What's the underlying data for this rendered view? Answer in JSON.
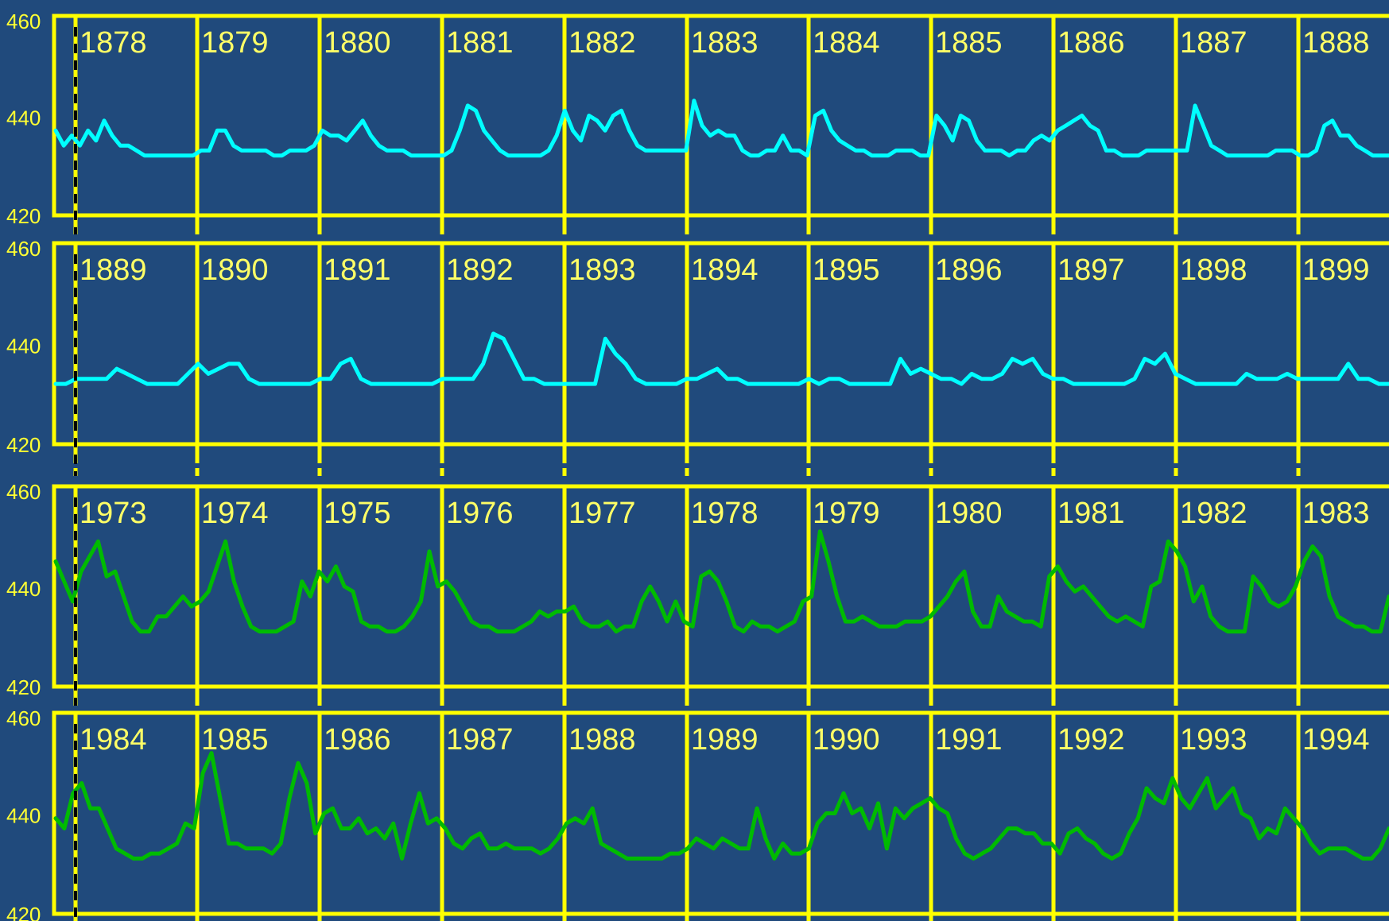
{
  "colors": {
    "background": "#204a7c",
    "frame": "#ffff00",
    "series_early": "#00ffff",
    "series_late": "#00bb00",
    "marker": "#000000"
  },
  "chart_data": [
    {
      "type": "line",
      "ylim": [
        420,
        460
      ],
      "yticks": [
        "460",
        "440",
        "420"
      ],
      "years": [
        "1878",
        "1879",
        "1880",
        "1881",
        "1882",
        "1883",
        "1884",
        "1885",
        "1886",
        "1887",
        "1888"
      ],
      "series": [
        {
          "color": "cyan",
          "values": [
            437,
            434,
            436,
            434,
            437,
            435,
            439,
            436,
            434,
            434,
            433,
            432,
            432,
            432,
            432,
            432,
            432,
            432,
            433,
            433,
            437,
            437,
            434,
            433,
            433,
            433,
            433,
            432,
            432,
            433,
            433,
            433,
            434,
            437,
            436,
            436,
            435,
            437,
            439,
            436,
            434,
            433,
            433,
            433,
            432,
            432,
            432,
            432,
            432,
            433,
            437,
            442,
            441,
            437,
            435,
            433,
            432,
            432,
            432,
            432,
            432,
            433,
            436,
            441,
            437,
            435,
            440,
            439,
            437,
            440,
            441,
            437,
            434,
            433,
            433,
            433,
            433,
            433,
            433,
            443,
            438,
            436,
            437,
            436,
            436,
            433,
            432,
            432,
            433,
            433,
            436,
            433,
            433,
            432,
            440,
            441,
            437,
            435,
            434,
            433,
            433,
            432,
            432,
            432,
            433,
            433,
            433,
            432,
            432,
            440,
            438,
            435,
            440,
            439,
            435,
            433,
            433,
            433,
            432,
            433,
            433,
            435,
            436,
            435,
            437,
            438,
            439,
            440,
            438,
            437,
            433,
            433,
            432,
            432,
            432,
            433,
            433,
            433,
            433,
            433,
            433,
            442,
            438,
            434,
            433,
            432,
            432,
            432,
            432,
            432,
            432,
            433,
            433,
            433,
            432,
            432,
            433,
            438,
            439,
            436,
            436,
            434,
            433,
            432,
            432,
            432
          ]
        }
      ]
    },
    {
      "type": "line",
      "ylim": [
        420,
        460
      ],
      "yticks": [
        "460",
        "440",
        "420"
      ],
      "years": [
        "1889",
        "1890",
        "1891",
        "1892",
        "1893",
        "1894",
        "1895",
        "1896",
        "1897",
        "1898",
        "1899"
      ],
      "series": [
        {
          "color": "cyan",
          "values": [
            432,
            432,
            433,
            433,
            433,
            433,
            435,
            434,
            433,
            432,
            432,
            432,
            432,
            434,
            436,
            434,
            435,
            436,
            436,
            433,
            432,
            432,
            432,
            432,
            432,
            432,
            433,
            433,
            436,
            437,
            433,
            432,
            432,
            432,
            432,
            432,
            432,
            432,
            433,
            433,
            433,
            433,
            436,
            442,
            441,
            437,
            433,
            433,
            432,
            432,
            432,
            432,
            432,
            432,
            441,
            438,
            436,
            433,
            432,
            432,
            432,
            432,
            433,
            433,
            434,
            435,
            433,
            433,
            432,
            432,
            432,
            432,
            432,
            432,
            433,
            432,
            433,
            433,
            432,
            432,
            432,
            432,
            432,
            437,
            434,
            435,
            434,
            433,
            433,
            432,
            434,
            433,
            433,
            434,
            437,
            436,
            437,
            434,
            433,
            433,
            432,
            432,
            432,
            432,
            432,
            432,
            433,
            437,
            436,
            438,
            434,
            433,
            432,
            432,
            432,
            432,
            432,
            434,
            433,
            433,
            433,
            434,
            433,
            433,
            433,
            433,
            433,
            436,
            433,
            433,
            432,
            432
          ]
        }
      ]
    },
    {
      "type": "line",
      "ylim": [
        420,
        460
      ],
      "yticks": [
        "460",
        "440",
        "420"
      ],
      "years": [
        "1973",
        "1974",
        "1975",
        "1976",
        "1977",
        "1978",
        "1979",
        "1980",
        "1981",
        "1982",
        "1983"
      ],
      "series": [
        {
          "color": "green",
          "values": [
            445,
            441,
            437,
            443,
            446,
            449,
            442,
            443,
            438,
            433,
            431,
            431,
            434,
            434,
            436,
            438,
            436,
            437,
            439,
            444,
            449,
            441,
            436,
            432,
            431,
            431,
            431,
            432,
            433,
            441,
            438,
            443,
            441,
            444,
            440,
            439,
            433,
            432,
            432,
            431,
            431,
            432,
            434,
            437,
            447,
            440,
            441,
            439,
            436,
            433,
            432,
            432,
            431,
            431,
            431,
            432,
            433,
            435,
            434,
            435,
            435,
            436,
            433,
            432,
            432,
            433,
            431,
            432,
            432,
            437,
            440,
            437,
            433,
            437,
            433,
            432,
            442,
            443,
            441,
            437,
            432,
            431,
            433,
            432,
            432,
            431,
            432,
            433,
            437,
            438,
            451,
            445,
            438,
            433,
            433,
            434,
            433,
            432,
            432,
            432,
            433,
            433,
            433,
            434,
            436,
            438,
            441,
            443,
            435,
            432,
            432,
            438,
            435,
            434,
            433,
            433,
            432,
            442,
            444,
            441,
            439,
            440,
            438,
            436,
            434,
            433,
            434,
            433,
            432,
            440,
            441,
            449,
            447,
            444,
            437,
            440,
            434,
            432,
            431,
            431,
            431,
            442,
            440,
            437,
            436,
            437,
            440,
            445,
            448,
            446,
            438,
            434,
            433,
            432,
            432,
            431,
            431,
            438
          ]
        }
      ]
    },
    {
      "type": "line",
      "ylim": [
        420,
        460
      ],
      "yticks": [
        "460",
        "440",
        "420"
      ],
      "years": [
        "1984",
        "1985",
        "1986",
        "1987",
        "1988",
        "1989",
        "1990",
        "1991",
        "1992",
        "1993",
        "1994"
      ],
      "series": [
        {
          "color": "green",
          "values": [
            439,
            437,
            444,
            446,
            441,
            441,
            437,
            433,
            432,
            431,
            431,
            432,
            432,
            433,
            434,
            438,
            437,
            448,
            452,
            443,
            434,
            434,
            433,
            433,
            433,
            432,
            434,
            443,
            450,
            446,
            436,
            440,
            441,
            437,
            437,
            439,
            436,
            437,
            435,
            438,
            431,
            438,
            444,
            438,
            439,
            437,
            434,
            433,
            435,
            436,
            433,
            433,
            434,
            433,
            433,
            433,
            432,
            433,
            435,
            438,
            439,
            438,
            441,
            434,
            433,
            432,
            431,
            431,
            431,
            431,
            431,
            432,
            432,
            433,
            435,
            434,
            433,
            435,
            434,
            433,
            433,
            441,
            435,
            431,
            434,
            432,
            432,
            433,
            438,
            440,
            440,
            444,
            440,
            441,
            437,
            442,
            433,
            441,
            439,
            441,
            442,
            443,
            441,
            440,
            435,
            432,
            431,
            432,
            433,
            435,
            437,
            437,
            436,
            436,
            434,
            434,
            432,
            436,
            437,
            435,
            434,
            432,
            431,
            432,
            436,
            439,
            445,
            443,
            442,
            447,
            443,
            441,
            444,
            447,
            441,
            443,
            445,
            440,
            439,
            435,
            437,
            436,
            441,
            439,
            437,
            434,
            432,
            433,
            433,
            433,
            432,
            431,
            431,
            433,
            437
          ]
        }
      ]
    }
  ]
}
